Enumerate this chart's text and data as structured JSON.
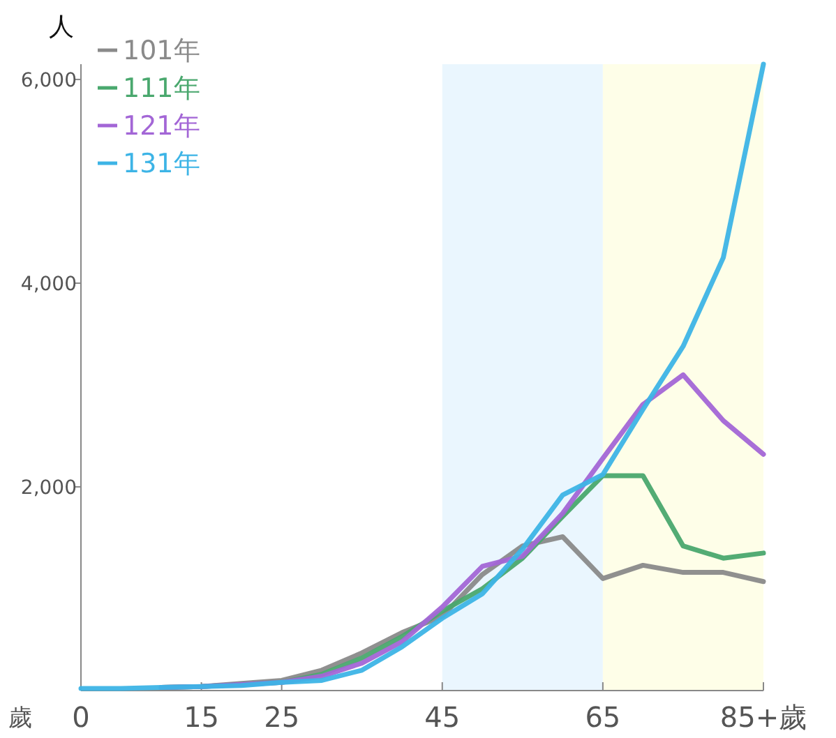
{
  "chart_data": {
    "type": "line",
    "ylabel": "人",
    "xlabel": "歲",
    "x": [
      0,
      5,
      10,
      15,
      20,
      25,
      30,
      35,
      40,
      45,
      50,
      55,
      60,
      65,
      70,
      75,
      80,
      85
    ],
    "xlim": [
      0,
      85
    ],
    "xticks": [
      0,
      15,
      25,
      45,
      65,
      {
        "value": 85,
        "label": "85+歲"
      }
    ],
    "ylim": [
      0,
      6150
    ],
    "yticks": [
      {
        "value": 2000,
        "label": "2,000"
      },
      {
        "value": 4000,
        "label": "4,000"
      },
      {
        "value": 6000,
        "label": "6,000"
      }
    ],
    "grid": false,
    "legend": "top left",
    "marker": "none",
    "line_style": "solid",
    "bands": [
      {
        "axis": "x",
        "from": 45,
        "to": 65,
        "color": "#eaf6fe"
      },
      {
        "axis": "x",
        "from": 65,
        "to": 85,
        "color": "#fefee8"
      }
    ],
    "series": [
      {
        "name": "101年",
        "color": "#8a8a8a",
        "values": [
          null,
          null,
          30,
          40,
          70,
          100,
          200,
          370,
          570,
          730,
          1140,
          1420,
          1510,
          1100,
          1230,
          1160,
          1160,
          1070
        ]
      },
      {
        "name": "111年",
        "color": "#4aa86e",
        "values": [
          null,
          null,
          30,
          40,
          60,
          80,
          160,
          320,
          530,
          780,
          1000,
          1300,
          1710,
          2110,
          2110,
          1420,
          1300,
          1350
        ]
      },
      {
        "name": "121年",
        "color": "#a366d6",
        "values": [
          null,
          null,
          30,
          40,
          60,
          80,
          140,
          270,
          480,
          820,
          1220,
          1320,
          1740,
          2280,
          2810,
          3100,
          2650,
          2320
        ]
      },
      {
        "name": "131年",
        "color": "#3db4e6",
        "values": [
          20,
          20,
          30,
          40,
          50,
          80,
          100,
          200,
          430,
          710,
          950,
          1390,
          1920,
          2120,
          2760,
          3380,
          4250,
          6150
        ]
      }
    ]
  }
}
